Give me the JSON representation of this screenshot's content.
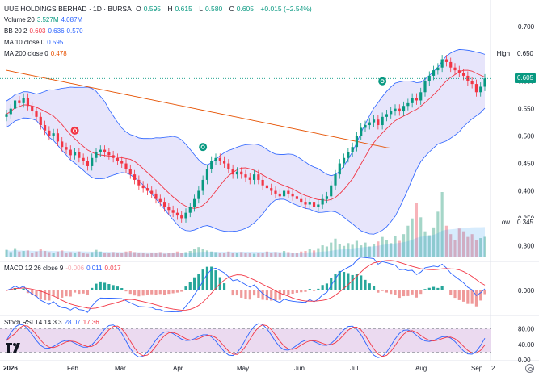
{
  "header": {
    "symbol": "UUE HOLDINGS BERHAD · 1D · BURSA",
    "open_label": "O",
    "open": "0.595",
    "high_label": "H",
    "high": "0.615",
    "low_label": "L",
    "low": "0.580",
    "close_label": "C",
    "close": "0.605",
    "change": "+0.015 (+2.54%)"
  },
  "legends": {
    "volume": {
      "label": "Volume 20",
      "v1": "3.527M",
      "v2": "4.087M"
    },
    "bb": {
      "label": "BB 20 2",
      "v1": "0.603",
      "v2": "0.636",
      "v3": "0.570"
    },
    "ma10": {
      "label": "MA 10 close 0",
      "v1": "0.595"
    },
    "ma200": {
      "label": "MA 200 close 0",
      "v1": "0.478"
    },
    "macd": {
      "label": "MACD 12 26 close 9",
      "v1": "-0.006",
      "v2": "0.011",
      "v3": "0.017"
    },
    "stoch": {
      "label": "Stoch RSI 14 14 3 3",
      "v1": "28.07",
      "v2": "17.36"
    }
  },
  "price_axis": {
    "ticks": [
      "0.700",
      "0.650",
      "0.600",
      "0.550",
      "0.500",
      "0.450",
      "0.400",
      "0.350",
      "0.300"
    ],
    "high_label": "High",
    "high_value": "0.650",
    "low_label": "Low",
    "low_value": "0.345",
    "last_price": "0.605"
  },
  "macd_axis": {
    "ticks": [
      "0.000"
    ]
  },
  "stoch_axis": {
    "ticks": [
      "80.00",
      "40.00",
      "0.00"
    ]
  },
  "time_axis": {
    "labels": [
      "2026",
      "Feb",
      "Mar",
      "Apr",
      "May",
      "Jun",
      "Jul",
      "Aug",
      "Sep",
      "2"
    ]
  },
  "colors": {
    "up": "#089981",
    "down": "#f23645",
    "bb_fill": "#e1defa",
    "bb_line": "#2962ff",
    "ma10": "#f23645",
    "ma200": "#e65100",
    "macd": "#2962ff",
    "signal": "#f23645",
    "stoch_k": "#2962ff",
    "stoch_d": "#f23645",
    "stoch_fill": "#e6d1ec"
  },
  "chart_data": {
    "type": "candlestick",
    "title": "UUE HOLDINGS BERHAD · 1D · BURSA",
    "ylim": [
      0.28,
      0.71
    ],
    "close": [
      0.54,
      0.55,
      0.565,
      0.56,
      0.57,
      0.555,
      0.545,
      0.535,
      0.52,
      0.51,
      0.5,
      0.505,
      0.49,
      0.48,
      0.475,
      0.465,
      0.47,
      0.46,
      0.455,
      0.445,
      0.46,
      0.47,
      0.475,
      0.47,
      0.465,
      0.46,
      0.455,
      0.45,
      0.44,
      0.43,
      0.42,
      0.41,
      0.405,
      0.4,
      0.395,
      0.385,
      0.38,
      0.37,
      0.365,
      0.36,
      0.355,
      0.35,
      0.36,
      0.37,
      0.385,
      0.4,
      0.42,
      0.44,
      0.455,
      0.46,
      0.455,
      0.45,
      0.44,
      0.43,
      0.435,
      0.43,
      0.425,
      0.42,
      0.43,
      0.42,
      0.41,
      0.405,
      0.4,
      0.395,
      0.39,
      0.4,
      0.395,
      0.39,
      0.385,
      0.38,
      0.375,
      0.38,
      0.37,
      0.375,
      0.385,
      0.39,
      0.41,
      0.43,
      0.45,
      0.46,
      0.47,
      0.48,
      0.5,
      0.515,
      0.52,
      0.525,
      0.53,
      0.52,
      0.535,
      0.54,
      0.545,
      0.55,
      0.545,
      0.555,
      0.56,
      0.57,
      0.565,
      0.58,
      0.6,
      0.61,
      0.62,
      0.625,
      0.64,
      0.635,
      0.625,
      0.62,
      0.615,
      0.61,
      0.6,
      0.595,
      0.58,
      0.59,
      0.605
    ],
    "volume": [
      1.2,
      0.8,
      1.5,
      0.9,
      1.0,
      1.1,
      0.7,
      0.9,
      1.3,
      1.0,
      0.8,
      0.6,
      0.9,
      1.1,
      0.7,
      0.8,
      0.6,
      0.9,
      0.7,
      0.5,
      0.8,
      1.2,
      0.9,
      0.6,
      0.7,
      0.8,
      0.6,
      0.7,
      0.9,
      1.0,
      0.8,
      0.7,
      0.6,
      0.5,
      0.7,
      0.6,
      0.8,
      0.5,
      0.6,
      0.7,
      0.9,
      0.6,
      0.8,
      1.0,
      1.4,
      1.7,
      1.3,
      1.1,
      0.9,
      0.8,
      0.7,
      0.6,
      0.9,
      0.7,
      0.6,
      0.8,
      0.7,
      0.6,
      0.5,
      0.7,
      0.6,
      0.9,
      0.6,
      0.8,
      0.7,
      1.0,
      0.8,
      0.6,
      0.7,
      0.9,
      1.0,
      1.3,
      1.1,
      1.5,
      2.0,
      1.8,
      2.5,
      3.2,
      2.2,
      1.9,
      2.4,
      2.1,
      2.8,
      2.0,
      2.5,
      1.8,
      2.2,
      2.7,
      3.5,
      2.9,
      2.4,
      3.6,
      2.8,
      4.0,
      5.5,
      6.8,
      9.5,
      7.0,
      4.5,
      3.8,
      5.2,
      8.0,
      11.5,
      5.5,
      4.0,
      3.0,
      5.0,
      4.5,
      3.5,
      4.0,
      3.0,
      3.3,
      3.527
    ],
    "ma200_start": 0.62,
    "ma200_end": 0.478
  }
}
